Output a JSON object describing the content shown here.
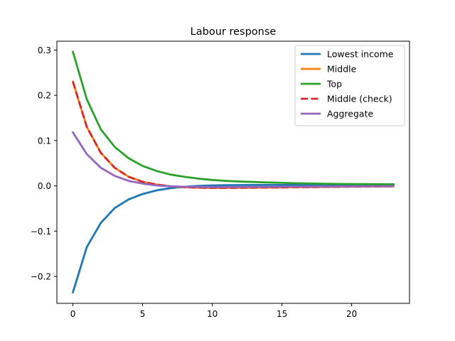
{
  "chart_data": {
    "type": "line",
    "title": "Labour response",
    "xlabel": "",
    "ylabel": "",
    "xlim": [
      -1.15,
      24.15
    ],
    "ylim": [
      -0.2595,
      0.3195
    ],
    "xticks": [
      0,
      5,
      10,
      15,
      20
    ],
    "yticks": [
      -0.2,
      -0.1,
      0.0,
      0.1,
      0.2,
      0.3
    ],
    "ytick_labels": [
      "−0.2",
      "−0.1",
      "0.0",
      "0.1",
      "0.2",
      "0.3"
    ],
    "grid": false,
    "legend_position": "top-right",
    "x": [
      0,
      1,
      2,
      3,
      4,
      5,
      6,
      7,
      8,
      9,
      10,
      11,
      12,
      13,
      14,
      15,
      16,
      17,
      18,
      19,
      20,
      21,
      22,
      23
    ],
    "series": [
      {
        "name": "Lowest income",
        "color": "#1f77b4",
        "dash": "solid",
        "values": [
          -0.235,
          -0.135,
          -0.082,
          -0.049,
          -0.03,
          -0.018,
          -0.01,
          -0.005,
          -0.002,
          0.0,
          0.001,
          0.0015,
          0.0018,
          0.002,
          0.002,
          0.002,
          0.002,
          0.002,
          0.002,
          0.0018,
          0.0016,
          0.0014,
          0.0012,
          0.001
        ]
      },
      {
        "name": "Middle",
        "color": "#ff7f0e",
        "dash": "solid",
        "values": [
          0.23,
          0.13,
          0.073,
          0.04,
          0.02,
          0.009,
          0.003,
          -0.001,
          -0.003,
          -0.004,
          -0.0045,
          -0.0045,
          -0.0042,
          -0.004,
          -0.0037,
          -0.0034,
          -0.003,
          -0.0027,
          -0.0024,
          -0.0021,
          -0.0018,
          -0.0016,
          -0.0014,
          -0.0012
        ]
      },
      {
        "name": "Top",
        "color": "#2ca02c",
        "dash": "solid",
        "values": [
          0.296,
          0.191,
          0.125,
          0.086,
          0.061,
          0.044,
          0.033,
          0.025,
          0.02,
          0.016,
          0.013,
          0.011,
          0.0095,
          0.0085,
          0.0075,
          0.0066,
          0.0058,
          0.0052,
          0.0047,
          0.0043,
          0.004,
          0.0038,
          0.0036,
          0.0034
        ]
      },
      {
        "name": "Middle (check)",
        "color": "#d62728",
        "dash": "dashed",
        "values": [
          0.23,
          0.13,
          0.073,
          0.04,
          0.02,
          0.009,
          0.003,
          -0.001,
          -0.003,
          -0.004,
          -0.0045,
          -0.0045,
          -0.0042,
          -0.004,
          -0.0037,
          -0.0034,
          -0.003,
          -0.0027,
          -0.0024,
          -0.0021,
          -0.0018,
          -0.0016,
          -0.0014,
          -0.0012
        ]
      },
      {
        "name": "Aggregate",
        "color": "#9467bd",
        "dash": "solid",
        "values": [
          0.118,
          0.07,
          0.04,
          0.022,
          0.011,
          0.005,
          0.001,
          -0.001,
          -0.002,
          -0.0025,
          -0.0027,
          -0.0027,
          -0.0026,
          -0.0024,
          -0.0022,
          -0.002,
          -0.0018,
          -0.0016,
          -0.0014,
          -0.0012,
          -0.0011,
          -0.001,
          -0.0009,
          -0.0008
        ]
      }
    ]
  }
}
